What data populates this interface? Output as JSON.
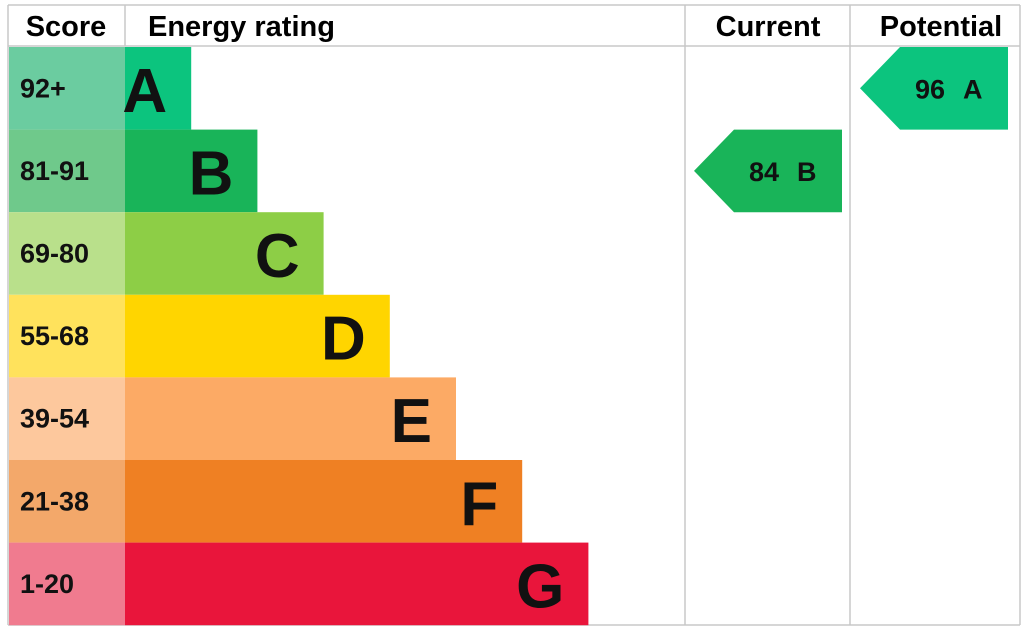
{
  "header": {
    "score": "Score",
    "rating": "Energy rating",
    "current": "Current",
    "potential": "Potential"
  },
  "bands": [
    {
      "score": "92+",
      "letter": "A",
      "color": "#0cc47e",
      "score_color": "#6bcca0"
    },
    {
      "score": "81-91",
      "letter": "B",
      "color": "#19b459",
      "score_color": "#6fc98b"
    },
    {
      "score": "69-80",
      "letter": "C",
      "color": "#8dce46",
      "score_color": "#b9e08b"
    },
    {
      "score": "55-68",
      "letter": "D",
      "color": "#ffd500",
      "score_color": "#ffe25c"
    },
    {
      "score": "39-54",
      "letter": "E",
      "color": "#fcaa65",
      "score_color": "#fdc89d"
    },
    {
      "score": "21-38",
      "letter": "F",
      "color": "#ef8023",
      "score_color": "#f3a86a"
    },
    {
      "score": "1-20",
      "letter": "G",
      "color": "#e9153b",
      "score_color": "#f07b8f"
    }
  ],
  "current": {
    "value": 84,
    "letter": "B"
  },
  "potential": {
    "value": 96,
    "letter": "A"
  }
}
